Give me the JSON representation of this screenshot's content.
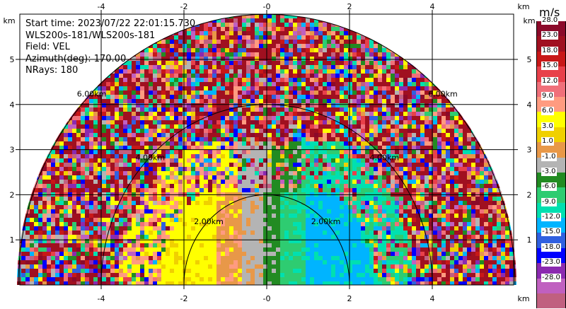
{
  "info": {
    "start_time": "Start time: 2023/07/22 22:01:15.730",
    "instrument": "WLS200s-181/WLS200s-181",
    "field": "Field: VEL",
    "azimuth": "Azimuth(deg): 170.00",
    "nrays": "NRays: 180"
  },
  "axes": {
    "x_unit": "km",
    "y_unit": "km",
    "x_ticks": [
      "-4",
      "-2",
      "-0",
      "2",
      "4"
    ],
    "y_ticks": [
      "1",
      "2",
      "3",
      "4",
      "5"
    ]
  },
  "range_rings": [
    "2.00km",
    "4.00km",
    "6.00km"
  ],
  "colorbar": {
    "unit": "m/s",
    "labels": [
      "28.0",
      "23.0",
      "18.0",
      "15.0",
      "12.0",
      "9.0",
      "6.0",
      "3.0",
      "1.0",
      "-1.0",
      "-3.0",
      "-6.0",
      "-9.0",
      "-12.0",
      "-15.0",
      "-18.0",
      "-23.0",
      "-28.0"
    ],
    "colors": [
      "#8b0a2a",
      "#a01020",
      "#c81818",
      "#e8404a",
      "#f0707a",
      "#ff9b80",
      "#ffff00",
      "#f0d000",
      "#e89848",
      "#b4b4b4",
      "#228b22",
      "#2ecc71",
      "#00e0b0",
      "#00b4ff",
      "#3060e0",
      "#0000ff",
      "#8b2ab0",
      "#c060c0",
      "#c06080"
    ]
  }
}
